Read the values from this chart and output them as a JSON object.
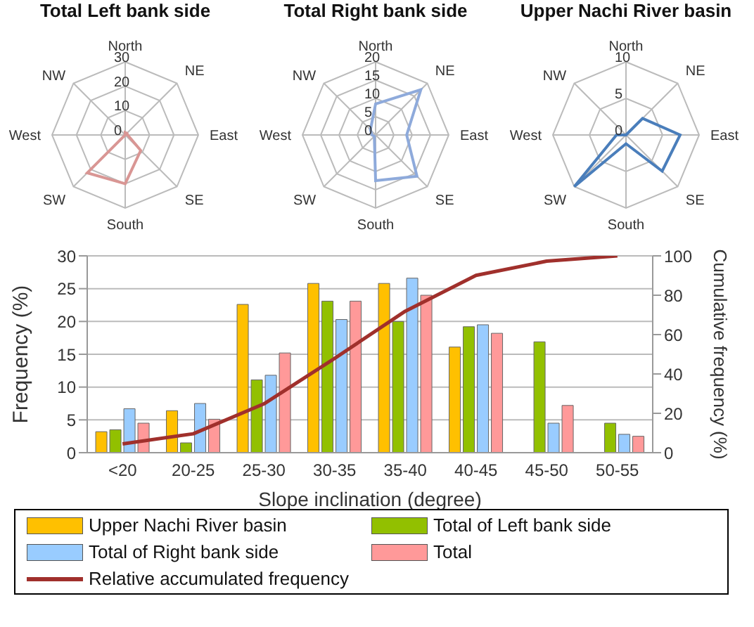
{
  "chart_data": [
    {
      "type": "radar",
      "title": "Total Left bank side",
      "categories": [
        "North",
        "NE",
        "East",
        "SE",
        "South",
        "SW",
        "West",
        "NW"
      ],
      "ylim": [
        0,
        30
      ],
      "yticks": [
        0,
        10,
        20,
        30
      ],
      "grid": true,
      "legend": false,
      "series": [
        {
          "color": "#d99694",
          "values": [
            1,
            1,
            1,
            9,
            20,
            22,
            0,
            0
          ]
        }
      ]
    },
    {
      "type": "radar",
      "title": "Total Right bank side",
      "categories": [
        "North",
        "NE",
        "East",
        "SE",
        "South",
        "SW",
        "West",
        "NW"
      ],
      "ylim": [
        0,
        20
      ],
      "yticks": [
        0,
        5,
        10,
        15,
        20
      ],
      "grid": true,
      "legend": false,
      "series": [
        {
          "color": "#8eaadb",
          "values": [
            8.5,
            17.5,
            8.5,
            16,
            12.5,
            0.5,
            1,
            2
          ]
        }
      ]
    },
    {
      "type": "radar",
      "title": "Upper Nachi River basin",
      "categories": [
        "North",
        "NE",
        "East",
        "SE",
        "South",
        "SW",
        "West",
        "NW"
      ],
      "ylim": [
        0,
        10
      ],
      "yticks": [
        0,
        5,
        10
      ],
      "grid": true,
      "legend": false,
      "series": [
        {
          "color": "#4a7ebb",
          "values": [
            0,
            3.2,
            7.4,
            7,
            1.2,
            10,
            1.3,
            0
          ]
        }
      ]
    },
    {
      "type": "bar",
      "xlabel": "Slope inclination (degree)",
      "ylabel": "Frequency (%)",
      "y2label": "Cumulative frequency (%)",
      "categories": [
        "<20",
        "20-25",
        "25-30",
        "30-35",
        "35-40",
        "40-45",
        "45-50",
        "50-55"
      ],
      "ylim": [
        0,
        30
      ],
      "yticks": [
        0,
        5,
        10,
        15,
        20,
        25,
        30
      ],
      "y2lim": [
        0,
        100
      ],
      "y2ticks": [
        0,
        20,
        40,
        60,
        80,
        100
      ],
      "grid": "y",
      "legend": "bottom",
      "series": [
        {
          "name": "Upper Nachi River basin",
          "color": "#ffc000",
          "values": [
            3.2,
            6.4,
            22.6,
            25.8,
            25.8,
            16.1,
            null,
            null
          ]
        },
        {
          "name": "Total of Left bank side",
          "color": "#92c000",
          "values": [
            3.5,
            1.5,
            11.1,
            23.1,
            20,
            19.2,
            16.9,
            4.5
          ]
        },
        {
          "name": "Total of Right bank side",
          "color": "#99ccff",
          "values": [
            6.7,
            7.5,
            11.8,
            20.3,
            26.6,
            19.5,
            4.5,
            2.8
          ]
        },
        {
          "name": "Total",
          "color": "#ff9999",
          "values": [
            4.5,
            5.1,
            15.2,
            23.1,
            24,
            18.2,
            7.2,
            2.5
          ]
        },
        {
          "name": "Relative accumulated frequency",
          "type": "line",
          "axis": "y2",
          "color": "#a0302c",
          "values": [
            4.5,
            9.6,
            24.8,
            47.9,
            71.9,
            90.1,
            97.3,
            100
          ]
        }
      ]
    }
  ]
}
